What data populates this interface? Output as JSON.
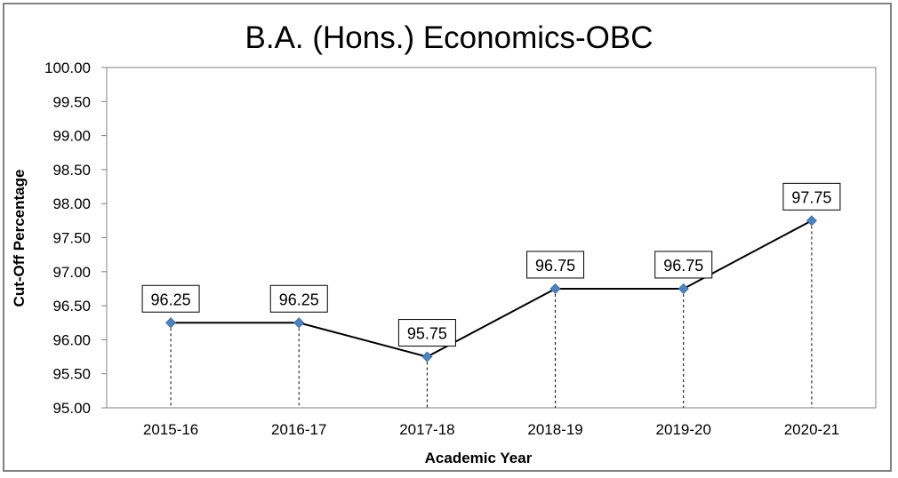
{
  "chart_data": {
    "type": "line",
    "title": "B.A. (Hons.) Economics-OBC",
    "xlabel": "Academic Year",
    "ylabel": "Cut-Off Percentage",
    "categories": [
      "2015-16",
      "2016-17",
      "2017-18",
      "2018-19",
      "2019-20",
      "2020-21"
    ],
    "series": [
      {
        "values": [
          96.25,
          96.25,
          95.75,
          96.75,
          96.75,
          97.75
        ]
      }
    ],
    "data_labels": [
      "96.25",
      "96.25",
      "95.75",
      "96.75",
      "96.75",
      "97.75"
    ],
    "ylim": [
      95.0,
      100.0
    ],
    "yticks": [
      "95.00",
      "95.50",
      "96.00",
      "96.50",
      "97.00",
      "97.50",
      "98.00",
      "98.50",
      "99.00",
      "99.50",
      "100.00"
    ],
    "grid": false,
    "drop_lines": true,
    "marker": "diamond",
    "colors": {
      "line": "#000000",
      "marker": "#4F81BD",
      "frame": "#808080"
    }
  }
}
